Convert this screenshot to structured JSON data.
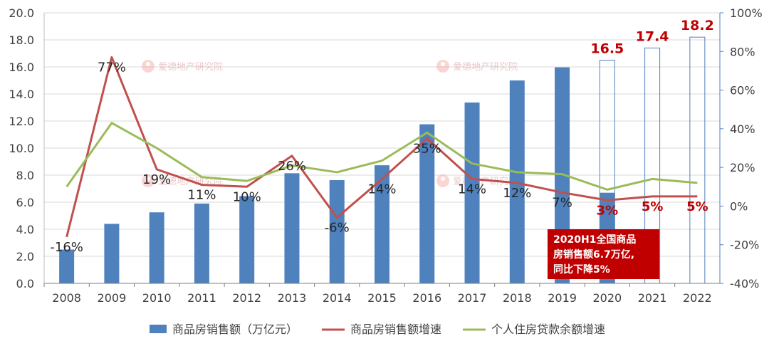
{
  "chart_data": {
    "type": "bar",
    "categories": [
      "2008",
      "2009",
      "2010",
      "2011",
      "2012",
      "2013",
      "2014",
      "2015",
      "2016",
      "2017",
      "2018",
      "2019",
      "2020",
      "2021",
      "2022"
    ],
    "bar_series": {
      "name": "商品房销售额（万亿元）",
      "values": [
        2.5,
        4.4,
        5.25,
        5.9,
        6.45,
        8.14,
        7.63,
        8.73,
        11.76,
        13.37,
        15.0,
        15.97,
        6.7,
        17.4,
        18.2
      ],
      "color": "#4f81bd",
      "hollow_from_index": 12,
      "projected_labels": [
        "16.5",
        "17.4",
        "18.2"
      ],
      "projected_values": [
        16.5,
        17.4,
        18.2
      ]
    },
    "line_series": [
      {
        "name": "商品房销售额增速",
        "axis": "right",
        "color": "#c0504d",
        "values": [
          -16,
          77,
          19,
          11,
          10,
          26,
          -6,
          14,
          35,
          14,
          12,
          7,
          3,
          5,
          5
        ],
        "labels": [
          "-16%",
          "77%",
          "19%",
          "11%",
          "10%",
          "26%",
          "-6%",
          "14%",
          "35%",
          "14%",
          "12%",
          "7%",
          "3%",
          "5%",
          "5%"
        ]
      },
      {
        "name": "个人住房贷款余额增速",
        "axis": "right",
        "color": "#9bbb59",
        "values": [
          10,
          43,
          30,
          15,
          13,
          21,
          17.5,
          23.5,
          38,
          22,
          17.5,
          16.5,
          8.5,
          14,
          12
        ]
      }
    ],
    "left_axis": {
      "ylim": [
        0,
        20
      ],
      "ticks": [
        "0.0",
        "2.0",
        "4.0",
        "6.0",
        "8.0",
        "10.0",
        "12.0",
        "14.0",
        "16.0",
        "18.0",
        "20.0"
      ]
    },
    "right_axis": {
      "ylim": [
        -40,
        100
      ],
      "ticks": [
        "-40%",
        "-20%",
        "0%",
        "20%",
        "40%",
        "60%",
        "80%",
        "100%"
      ]
    },
    "grid": true,
    "legend_position": "bottom",
    "annotation": {
      "lines": [
        "2020H1全国商品",
        "房销售额6.7万亿,",
        "同比下降5%"
      ],
      "background": "#c00000"
    },
    "watermark": "爱德地产研究院"
  }
}
